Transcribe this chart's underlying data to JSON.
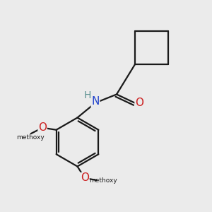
{
  "bg_color": "#EBEBEB",
  "bond_color": "#1a1a1a",
  "N_color": "#2244CC",
  "O_color": "#CC2020",
  "H_color": "#5a9090",
  "line_width": 1.6,
  "font_size_atom": 11,
  "fig_size": [
    3.0,
    3.0
  ],
  "dpi": 100,
  "xlim": [
    0,
    10
  ],
  "ylim": [
    0,
    10
  ]
}
